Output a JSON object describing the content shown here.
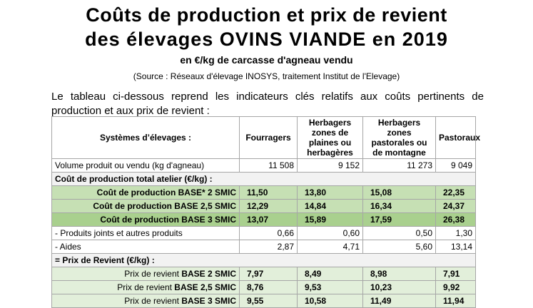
{
  "header": {
    "title_line1": "Coûts de production et prix de revient",
    "title_line2": "des élevages OVINS VIANDE en 2019",
    "subtitle": "en €/kg de carcasse d'agneau vendu",
    "source": "(Source : Réseaux d'élevage INOSYS, traitement Institut de l'Elevage)"
  },
  "intro": "Le tableau ci-dessous reprend les indicateurs clés relatifs aux coûts pertinents de production et aux prix de revient :",
  "table": {
    "columns": [
      "Systèmes d’élevages :",
      "Fourragers",
      "Herbagers zones de plaines ou herbagères",
      "Herbagers zones pastorales ou de montagne",
      "Pastoraux"
    ],
    "rows": [
      {
        "label": "Volume produit ou vendu (kg d'agneau)",
        "values": [
          "11 508",
          "9 152",
          "11 273",
          "9 049"
        ]
      },
      {
        "label": "Coût de production total atelier (€/kg) :"
      },
      {
        "label": "Coût de production BASE* 2 SMIC",
        "values": [
          "11,50",
          "13,80",
          "15,08",
          "22,35"
        ]
      },
      {
        "label": "Coût de production BASE 2,5 SMIC",
        "values": [
          "12,29",
          "14,84",
          "16,34",
          "24,37"
        ]
      },
      {
        "label": "Coût de production BASE 3 SMIC",
        "values": [
          "13,07",
          "15,89",
          "17,59",
          "26,38"
        ]
      },
      {
        "label": "- Produits joints et autres produits",
        "values": [
          "0,66",
          "0,60",
          "0,50",
          "1,30"
        ]
      },
      {
        "label": "- Aides",
        "values": [
          "2,87",
          "4,71",
          "5,60",
          "13,14"
        ]
      },
      {
        "label": "= Prix de Revient (€/kg) :"
      },
      {
        "label": "Prix de revient",
        "label_bold": "BASE 2 SMIC",
        "values": [
          "7,97",
          "8,49",
          "8,98",
          "7,91"
        ]
      },
      {
        "label": "Prix de revient",
        "label_bold": "BASE 2,5 SMIC",
        "values": [
          "8,76",
          "9,53",
          "10,23",
          "9,92"
        ]
      },
      {
        "label": "Prix de revient",
        "label_bold": "BASE 3 SMIC",
        "values": [
          "9,55",
          "10,58",
          "11,49",
          "11,94"
        ]
      }
    ]
  }
}
